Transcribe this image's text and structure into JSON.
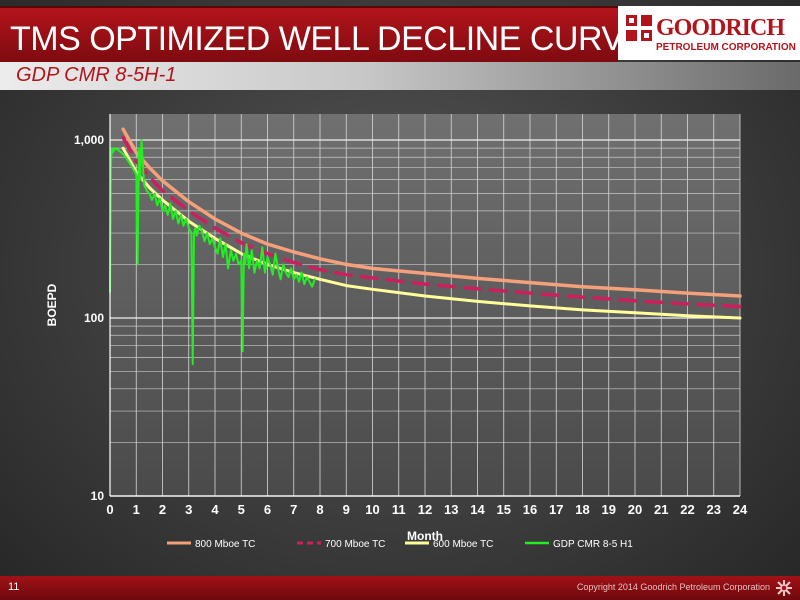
{
  "header": {
    "title": "TMS OPTIMIZED WELL DECLINE CURVE",
    "subtitle": "GDP CMR 8-5H-1",
    "logo_line1": "GOODRICH",
    "logo_line2": "PETROLEUM CORPORATION"
  },
  "footer": {
    "page_number": "11",
    "copyright": "Copyright 2014 Goodrich Petroleum Corporation"
  },
  "colors": {
    "tc800": "#f4a07a",
    "tc700": "#cc1f5e",
    "tc600": "#ffff99",
    "actual": "#22ee22",
    "brand_red": "#b3141b"
  },
  "chart_data": {
    "type": "line",
    "xlabel": "Month",
    "ylabel": "BOEPD",
    "xlim": [
      0,
      24
    ],
    "ylim": [
      10,
      1400
    ],
    "yscale": "log",
    "grid": true,
    "legend_position": "bottom",
    "x_ticks": [
      "0",
      "1",
      "2",
      "3",
      "4",
      "5",
      "6",
      "7",
      "8",
      "9",
      "10",
      "11",
      "12",
      "13",
      "14",
      "15",
      "16",
      "17",
      "18",
      "19",
      "20",
      "21",
      "22",
      "23",
      "24"
    ],
    "y_ticks": [
      {
        "value": 10,
        "label": "10"
      },
      {
        "value": 100,
        "label": "100"
      },
      {
        "value": 1000,
        "label": "1,000"
      }
    ],
    "series": [
      {
        "name": "800 Mboe TC",
        "style": "solid",
        "color": "#f4a07a",
        "x": [
          0.5,
          1,
          1.5,
          2,
          3,
          4,
          5,
          6,
          7,
          8,
          9,
          10,
          12,
          14,
          16,
          18,
          20,
          22,
          24
        ],
        "y": [
          1150,
          850,
          700,
          590,
          450,
          360,
          300,
          260,
          235,
          215,
          200,
          190,
          178,
          167,
          158,
          150,
          144,
          138,
          133
        ]
      },
      {
        "name": "700 Mboe TC",
        "style": "dashed",
        "color": "#cc1f5e",
        "x": [
          0.5,
          1,
          1.5,
          2,
          3,
          4,
          5,
          6,
          7,
          8,
          9,
          10,
          12,
          14,
          16,
          18,
          20,
          22,
          24
        ],
        "y": [
          1030,
          760,
          620,
          520,
          400,
          320,
          265,
          230,
          205,
          187,
          175,
          168,
          155,
          146,
          138,
          131,
          125,
          120,
          116
        ]
      },
      {
        "name": "600 Mboe TC",
        "style": "solid",
        "color": "#ffff99",
        "x": [
          0.5,
          1,
          1.5,
          2,
          3,
          4,
          5,
          6,
          7,
          8,
          9,
          10,
          12,
          14,
          16,
          18,
          20,
          22,
          24
        ],
        "y": [
          900,
          660,
          540,
          460,
          350,
          280,
          230,
          200,
          180,
          165,
          152,
          145,
          133,
          124,
          117,
          111,
          107,
          103,
          100
        ]
      },
      {
        "name": "GDP CMR 8-5 H1",
        "style": "solid",
        "color": "#22ee22",
        "x": [
          0.0,
          0.03,
          0.07,
          0.1,
          0.2,
          0.3,
          0.4,
          0.5,
          0.6,
          0.7,
          0.8,
          0.9,
          1.0,
          1.05,
          1.1,
          1.15,
          1.2,
          1.3,
          1.4,
          1.5,
          1.6,
          1.7,
          1.8,
          1.9,
          2.0,
          2.1,
          2.2,
          2.3,
          2.4,
          2.5,
          2.6,
          2.7,
          2.8,
          2.9,
          3.0,
          3.1,
          3.15,
          3.2,
          3.25,
          3.3,
          3.4,
          3.5,
          3.6,
          3.7,
          3.8,
          3.9,
          4.0,
          4.1,
          4.2,
          4.3,
          4.4,
          4.5,
          4.6,
          4.7,
          4.8,
          4.9,
          5.0,
          5.05,
          5.1,
          5.15,
          5.2,
          5.3,
          5.4,
          5.5,
          5.6,
          5.7,
          5.8,
          5.9,
          6.0,
          6.1,
          6.2,
          6.3,
          6.4,
          6.5,
          6.6,
          6.7,
          6.8,
          6.9,
          7.0,
          7.1,
          7.2,
          7.3,
          7.4,
          7.5,
          7.6,
          7.7,
          7.8
        ],
        "y": [
          140,
          700,
          900,
          850,
          900,
          880,
          860,
          830,
          800,
          760,
          720,
          680,
          640,
          200,
          900,
          600,
          1000,
          560,
          520,
          500,
          460,
          500,
          430,
          470,
          400,
          430,
          380,
          440,
          360,
          400,
          340,
          380,
          330,
          360,
          320,
          300,
          55,
          300,
          320,
          290,
          330,
          310,
          270,
          300,
          260,
          280,
          250,
          230,
          280,
          220,
          260,
          190,
          240,
          210,
          230,
          200,
          210,
          65,
          230,
          200,
          260,
          190,
          240,
          180,
          210,
          190,
          250,
          180,
          220,
          200,
          175,
          230,
          190,
          165,
          200,
          180,
          170,
          190,
          165,
          175,
          160,
          180,
          155,
          170,
          160,
          150,
          165
        ]
      }
    ]
  }
}
